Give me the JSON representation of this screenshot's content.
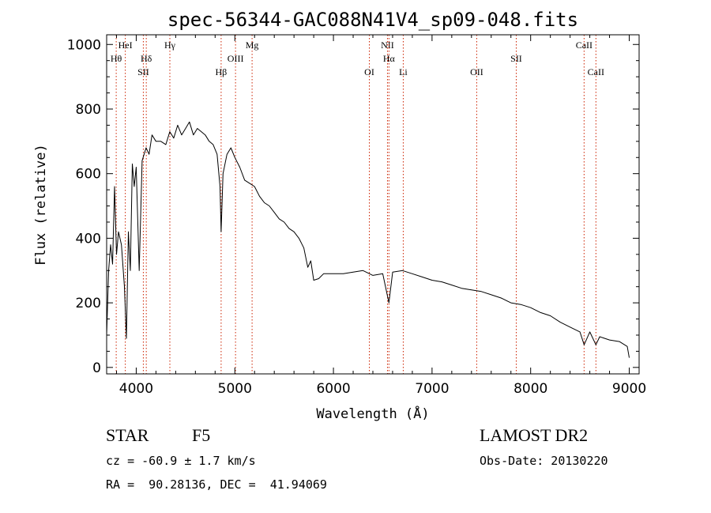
{
  "chart_data": {
    "type": "line",
    "title": "spec-56344-GAC088N41V4_sp09-048.fits",
    "xlabel": "Wavelength (Å)",
    "ylabel": "Flux (relative)",
    "xlim": [
      3700,
      9100
    ],
    "ylim": [
      -20,
      1030
    ],
    "x_ticks": [
      4000,
      5000,
      6000,
      7000,
      8000,
      9000
    ],
    "y_ticks": [
      0,
      200,
      400,
      600,
      800,
      1000
    ],
    "grid": false,
    "legend": "none",
    "line_color": "#000000",
    "marker_color": "#cc2200",
    "series": [
      {
        "x": [
          3700,
          3720,
          3740,
          3760,
          3780,
          3800,
          3820,
          3850,
          3880,
          3900,
          3920,
          3940,
          3960,
          3980,
          4000,
          4030,
          4060,
          4100,
          4130,
          4160,
          4200,
          4250,
          4300,
          4340,
          4380,
          4420,
          4460,
          4500,
          4540,
          4580,
          4620,
          4660,
          4700,
          4740,
          4780,
          4820,
          4850,
          4861,
          4880,
          4920,
          4960,
          5000,
          5050,
          5100,
          5150,
          5200,
          5250,
          5300,
          5350,
          5400,
          5450,
          5500,
          5550,
          5600,
          5650,
          5700,
          5740,
          5770,
          5800,
          5850,
          5900,
          6000,
          6100,
          6200,
          6300,
          6400,
          6500,
          6563,
          6600,
          6700,
          6800,
          6900,
          7000,
          7100,
          7200,
          7300,
          7400,
          7500,
          7600,
          7700,
          7800,
          7900,
          8000,
          8100,
          8200,
          8300,
          8400,
          8500,
          8542,
          8600,
          8662,
          8700,
          8800,
          8900,
          8980,
          9000
        ],
        "y": [
          100,
          300,
          380,
          320,
          560,
          350,
          420,
          380,
          250,
          90,
          420,
          300,
          630,
          560,
          620,
          300,
          640,
          680,
          660,
          720,
          700,
          700,
          690,
          730,
          710,
          750,
          720,
          740,
          760,
          720,
          740,
          730,
          720,
          700,
          690,
          660,
          560,
          420,
          600,
          660,
          680,
          650,
          620,
          580,
          570,
          560,
          530,
          510,
          500,
          480,
          460,
          450,
          430,
          420,
          400,
          370,
          310,
          330,
          270,
          275,
          290,
          290,
          290,
          295,
          300,
          285,
          290,
          200,
          295,
          300,
          290,
          280,
          270,
          265,
          255,
          245,
          240,
          235,
          225,
          215,
          200,
          195,
          185,
          170,
          160,
          140,
          125,
          110,
          70,
          110,
          70,
          95,
          85,
          80,
          65,
          30
        ]
      }
    ],
    "lines": [
      {
        "x": 3797,
        "label": "Hθ",
        "row": 2
      },
      {
        "x": 3889,
        "label": "HeI",
        "row": 1
      },
      {
        "x": 4072,
        "label": "SII",
        "row": 3
      },
      {
        "x": 4102,
        "label": "Hδ",
        "row": 2
      },
      {
        "x": 4341,
        "label": "Hγ",
        "row": 1
      },
      {
        "x": 4861,
        "label": "Hβ",
        "row": 3
      },
      {
        "x": 5007,
        "label": "OIII",
        "row": 2
      },
      {
        "x": 5175,
        "label": "Mg",
        "row": 1
      },
      {
        "x": 6364,
        "label": "OI",
        "row": 3
      },
      {
        "x": 6548,
        "label": "NII",
        "row": 1
      },
      {
        "x": 6563,
        "label": "Hα",
        "row": 2
      },
      {
        "x": 6708,
        "label": "Li",
        "row": 3
      },
      {
        "x": 7453,
        "label": "OII",
        "row": 3
      },
      {
        "x": 7854,
        "label": "SII",
        "row": 2
      },
      {
        "x": 8542,
        "label": "CaII",
        "row": 1
      },
      {
        "x": 8662,
        "label": "CaII",
        "row": 3
      }
    ]
  },
  "info": {
    "object_class": "STAR",
    "subclass": "F5",
    "survey": "LAMOST DR2",
    "redshift_line": "cz = -60.9 ± 1.7 km/s",
    "obs_date_line": "Obs-Date: 20130220",
    "coords_line": "RA =  90.28136, DEC =  41.94069"
  }
}
